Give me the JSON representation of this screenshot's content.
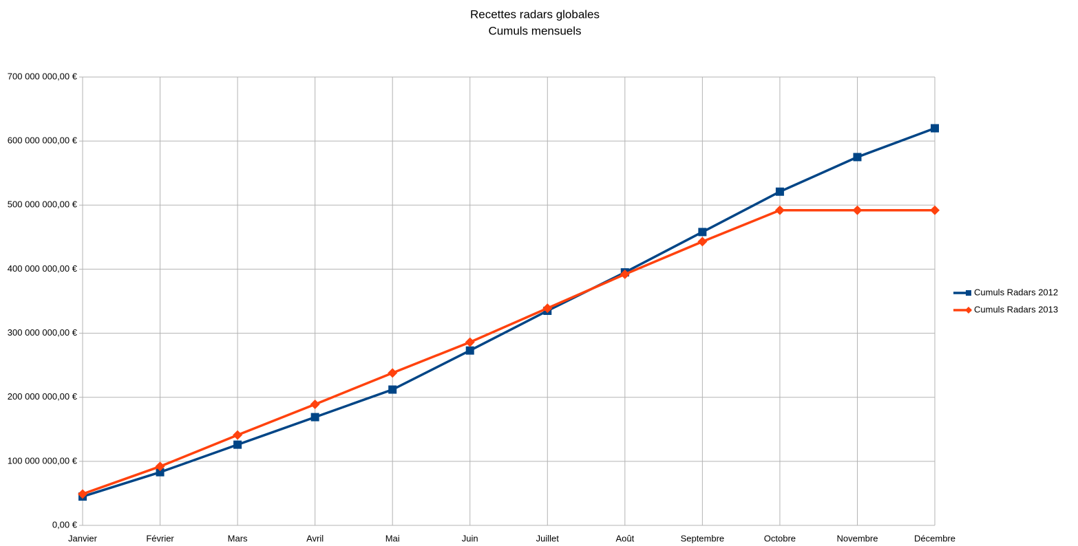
{
  "chart_data": {
    "type": "line",
    "title": "Recettes radars globales",
    "subtitle": "Cumuls mensuels",
    "categories": [
      "Janvier",
      "Février",
      "Mars",
      "Avril",
      "Mai",
      "Juin",
      "Juillet",
      "Août",
      "Septembre",
      "Octobre",
      "Novembre",
      "Décembre"
    ],
    "series": [
      {
        "name": "Cumuls Radars 2012",
        "color": "#004586",
        "marker": "square",
        "values": [
          45000000,
          83000000,
          126000000,
          169000000,
          212000000,
          273000000,
          335000000,
          395000000,
          458000000,
          521000000,
          575000000,
          620000000
        ]
      },
      {
        "name": "Cumuls Radars 2013",
        "color": "#ff420e",
        "marker": "diamond",
        "values": [
          49000000,
          92000000,
          141000000,
          189000000,
          238000000,
          286000000,
          339000000,
          392000000,
          443000000,
          492000000,
          492000000,
          492000000
        ]
      }
    ],
    "ylim": [
      0,
      700000000
    ],
    "yticks": [
      {
        "value": 0,
        "label": "0,00 €"
      },
      {
        "value": 100000000,
        "label": "100 000 000,00 €"
      },
      {
        "value": 200000000,
        "label": "200 000 000,00 €"
      },
      {
        "value": 300000000,
        "label": "300 000 000,00 €"
      },
      {
        "value": 400000000,
        "label": "400 000 000,00 €"
      },
      {
        "value": 500000000,
        "label": "500 000 000,00 €"
      },
      {
        "value": 600000000,
        "label": "600 000 000,00 €"
      },
      {
        "value": 700000000,
        "label": "700 000 000,00 €"
      }
    ],
    "grid": true,
    "legend": "right"
  }
}
